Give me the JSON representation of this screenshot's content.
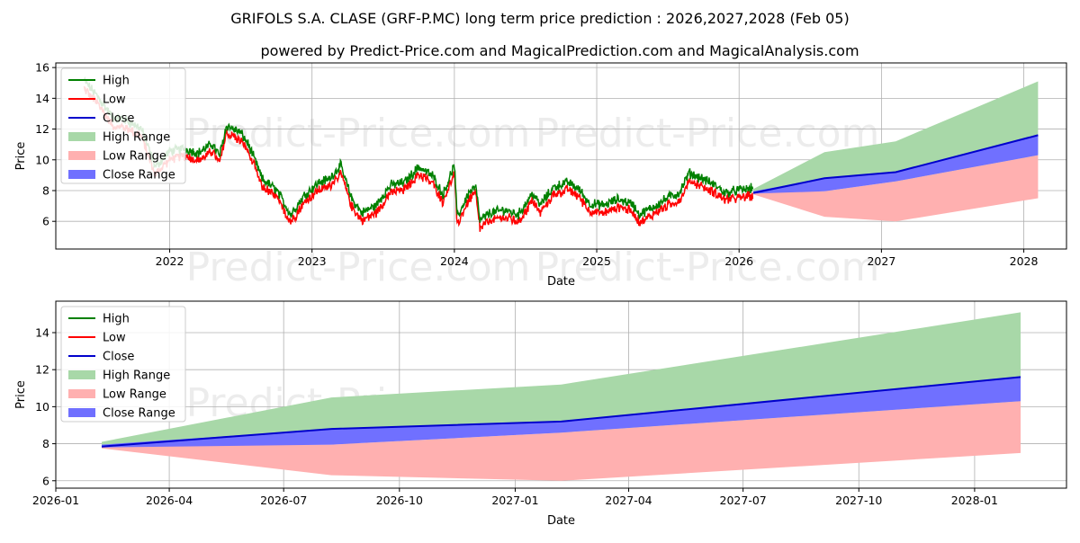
{
  "title": "GRIFOLS S.A. CLASE (GRF-P.MC) long term price prediction : 2026,2027,2028 (Feb 05)",
  "subtitle": "powered by Predict-Price.com and MagicalPrediction.com and MagicalAnalysis.com",
  "watermark": "Predict-Price.com",
  "colors": {
    "high": "#008000",
    "low": "#ff0000",
    "close": "#0000cc",
    "high_range": "#a8d8a8",
    "low_range": "#ffb0b0",
    "close_range": "#7070ff"
  },
  "chart_data": [
    {
      "type": "line",
      "name": "long-term",
      "xlabel": "Date",
      "ylabel": "Price",
      "xlim": [
        2021.2,
        2028.3
      ],
      "ylim": [
        4.2,
        16.3
      ],
      "x_ticks": [
        2022,
        2023,
        2024,
        2025,
        2026,
        2027,
        2028
      ],
      "x_tick_labels": [
        "2022",
        "2023",
        "2024",
        "2025",
        "2026",
        "2027",
        "2028"
      ],
      "y_ticks": [
        6,
        8,
        10,
        12,
        14,
        16
      ],
      "grid": true,
      "legend": [
        "High",
        "Low",
        "Close",
        "High Range",
        "Low Range",
        "Close Range"
      ],
      "history_keypoints": [
        [
          2021.4,
          14.9
        ],
        [
          2021.5,
          13.8
        ],
        [
          2021.6,
          12.5
        ],
        [
          2021.7,
          12.3
        ],
        [
          2021.8,
          11.8
        ],
        [
          2021.9,
          9.3
        ],
        [
          2022.0,
          10.3
        ],
        [
          2022.1,
          10.5
        ],
        [
          2022.2,
          10.2
        ],
        [
          2022.3,
          10.8
        ],
        [
          2022.35,
          10.0
        ],
        [
          2022.4,
          12.0
        ],
        [
          2022.5,
          11.5
        ],
        [
          2022.55,
          10.8
        ],
        [
          2022.6,
          9.7
        ],
        [
          2022.65,
          8.5
        ],
        [
          2022.75,
          7.8
        ],
        [
          2022.85,
          6.2
        ],
        [
          2022.95,
          7.5
        ],
        [
          2023.05,
          8.3
        ],
        [
          2023.12,
          8.5
        ],
        [
          2023.2,
          9.4
        ],
        [
          2023.28,
          7.2
        ],
        [
          2023.35,
          6.3
        ],
        [
          2023.45,
          6.8
        ],
        [
          2023.55,
          8.1
        ],
        [
          2023.65,
          8.3
        ],
        [
          2023.75,
          9.3
        ],
        [
          2023.85,
          8.7
        ],
        [
          2023.92,
          7.5
        ],
        [
          2024.0,
          9.4
        ],
        [
          2024.02,
          6.0
        ],
        [
          2024.1,
          7.6
        ],
        [
          2024.15,
          8.0
        ],
        [
          2024.18,
          5.8
        ],
        [
          2024.25,
          6.3
        ],
        [
          2024.35,
          6.5
        ],
        [
          2024.45,
          6.2
        ],
        [
          2024.55,
          7.6
        ],
        [
          2024.6,
          6.8
        ],
        [
          2024.7,
          8.0
        ],
        [
          2024.8,
          8.3
        ],
        [
          2024.88,
          7.8
        ],
        [
          2024.95,
          6.9
        ],
        [
          2025.05,
          6.8
        ],
        [
          2025.15,
          7.2
        ],
        [
          2025.25,
          6.9
        ],
        [
          2025.3,
          6.2
        ],
        [
          2025.4,
          6.7
        ],
        [
          2025.5,
          7.3
        ],
        [
          2025.58,
          7.6
        ],
        [
          2025.65,
          8.9
        ],
        [
          2025.75,
          8.5
        ],
        [
          2025.85,
          8.0
        ],
        [
          2025.9,
          7.6
        ],
        [
          2026.0,
          7.8
        ],
        [
          2026.1,
          7.9
        ]
      ],
      "forecast": {
        "x": [
          2026.1,
          2026.6,
          2027.1,
          2028.1
        ],
        "close": [
          7.85,
          8.8,
          9.2,
          11.6
        ],
        "high_range": [
          [
            7.9,
            8.1
          ],
          [
            8.1,
            10.5
          ],
          [
            8.6,
            11.2
          ],
          [
            10.3,
            15.1
          ]
        ],
        "low_range": [
          [
            7.75,
            7.9
          ],
          [
            6.3,
            7.95
          ],
          [
            6.0,
            8.6
          ],
          [
            7.5,
            10.3
          ]
        ],
        "close_range": [
          [
            7.8,
            7.95
          ],
          [
            7.95,
            8.8
          ],
          [
            8.6,
            9.2
          ],
          [
            10.3,
            11.6
          ]
        ]
      }
    },
    {
      "type": "line",
      "name": "forecast-zoom",
      "xlabel": "Date",
      "ylabel": "Price",
      "xlim": [
        2026.0,
        2028.2
      ],
      "ylim": [
        5.6,
        15.7
      ],
      "x_ticks": [
        2026.0,
        2026.247,
        2026.496,
        2026.748,
        2027.0,
        2027.247,
        2027.496,
        2027.748,
        2028.0
      ],
      "x_tick_labels": [
        "2026-01",
        "2026-04",
        "2026-07",
        "2026-10",
        "2027-01",
        "2027-04",
        "2027-07",
        "2027-10",
        "2028-01"
      ],
      "y_ticks": [
        6,
        8,
        10,
        12,
        14
      ],
      "grid": true,
      "legend": [
        "High",
        "Low",
        "Close",
        "High Range",
        "Low Range",
        "Close Range"
      ],
      "forecast": {
        "x": [
          2026.1,
          2026.6,
          2027.1,
          2028.1
        ],
        "close": [
          7.85,
          8.8,
          9.2,
          11.6
        ],
        "high_range": [
          [
            7.9,
            8.1
          ],
          [
            8.1,
            10.5
          ],
          [
            8.6,
            11.2
          ],
          [
            10.3,
            15.1
          ]
        ],
        "low_range": [
          [
            7.75,
            7.9
          ],
          [
            6.3,
            7.95
          ],
          [
            6.0,
            8.6
          ],
          [
            7.5,
            10.3
          ]
        ],
        "close_range": [
          [
            7.8,
            7.95
          ],
          [
            7.95,
            8.8
          ],
          [
            8.6,
            9.2
          ],
          [
            10.3,
            11.6
          ]
        ]
      }
    }
  ]
}
